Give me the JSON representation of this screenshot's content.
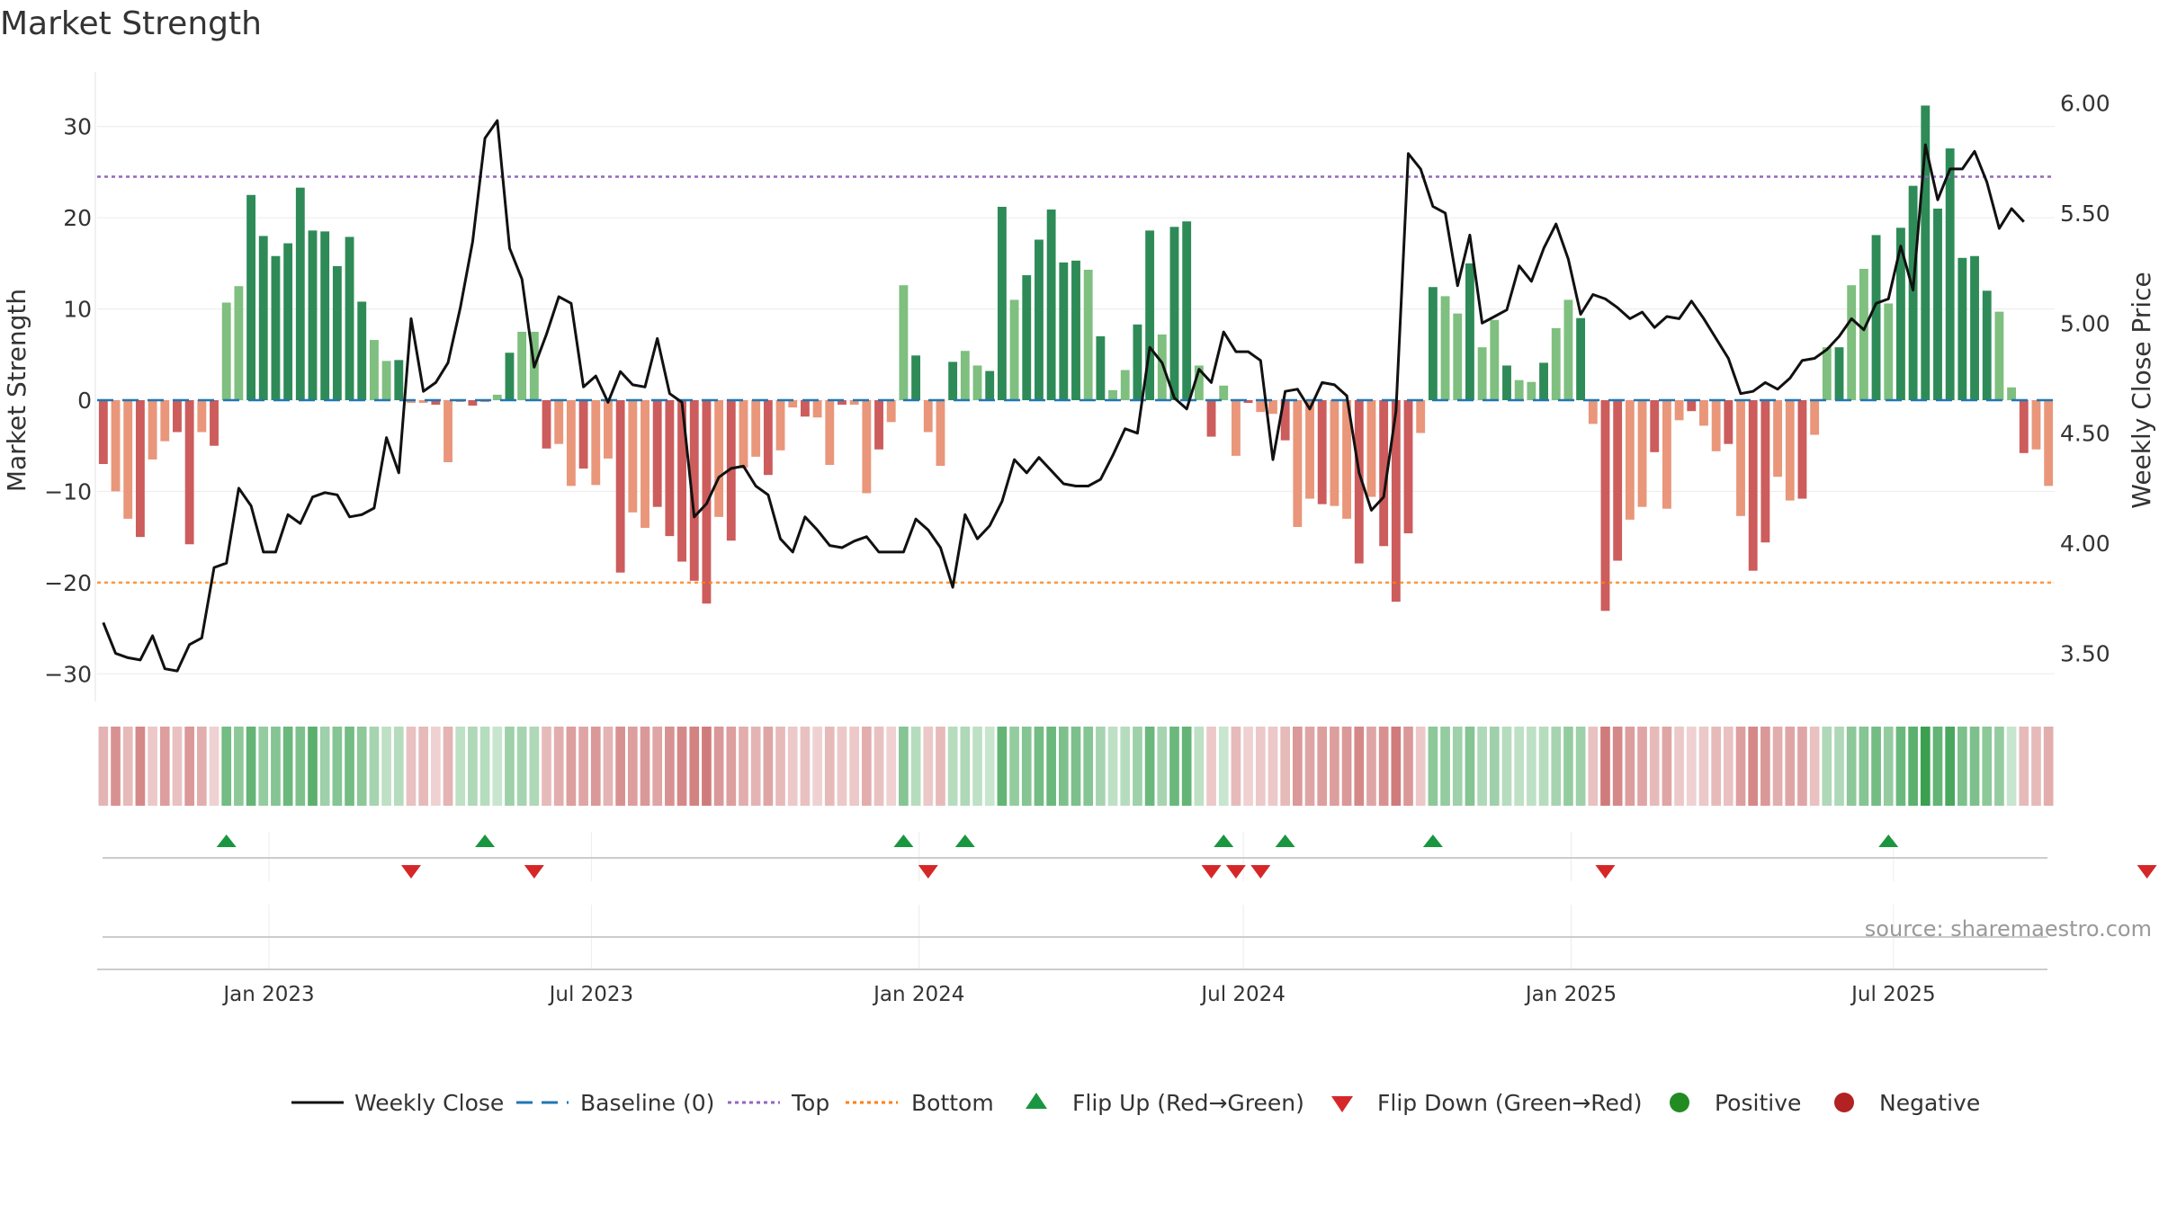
{
  "chart_data": {
    "type": "bar",
    "title": "Market Strength",
    "ylabel": "Market Strength",
    "y2label": "Weekly Close Price",
    "ylim": [
      -35,
      35
    ],
    "y2lim": [
      3.2,
      6.1
    ],
    "yticks": [
      -30,
      -20,
      -10,
      0,
      10,
      20,
      30
    ],
    "yticklabels": [
      "−30",
      "−20",
      "−10",
      "0",
      "10",
      "20",
      "30"
    ],
    "y2ticks": [
      3.5,
      4.0,
      4.5,
      5.0,
      5.5,
      6.0
    ],
    "y2ticklabels": [
      "3.50",
      "4.00",
      "4.50",
      "5.00",
      "5.50",
      "6.00"
    ],
    "x_start": "2022-09-30",
    "x_end": "2025-09-26",
    "xticks": [
      "2023-01-01",
      "2023-07-01",
      "2024-01-01",
      "2024-07-01",
      "2025-01-01",
      "2025-07-01"
    ],
    "xticklabels": [
      "Jan 2023",
      "Jul 2023",
      "Jan 2024",
      "Jul 2024",
      "Jan 2025",
      "Jul 2025"
    ],
    "top_level": 24.5,
    "bottom_level": -20,
    "baseline": 0,
    "strength_values": [
      -7,
      -10,
      -13,
      -15,
      -6.5,
      -4.5,
      -3.5,
      -15.8,
      -3.5,
      -5,
      10.7,
      12.5,
      22.5,
      18,
      15.8,
      17.2,
      23.3,
      18.6,
      18.5,
      14.7,
      17.9,
      10.8,
      6.6,
      4.3,
      4.4,
      -0.3,
      -0.3,
      -0.5,
      -6.8,
      -0.2,
      -0.6,
      -0.2,
      0.6,
      5.2,
      7.5,
      7.5,
      -5.3,
      -4.8,
      -9.4,
      -7.5,
      -9.3,
      -6.4,
      -18.9,
      -12.3,
      -14,
      -11.7,
      -14.9,
      -17.7,
      -19.8,
      -22.3,
      -12.8,
      -15.4,
      -7.4,
      -6.2,
      -8.2,
      -5.5,
      -0.8,
      -1.8,
      -1.9,
      -7.1,
      -0.5,
      -0.5,
      -10.2,
      -5.4,
      -2.4,
      12.6,
      4.9,
      -3.5,
      -7.2,
      4.2,
      5.4,
      3.8,
      3.2,
      21.2,
      11,
      13.7,
      17.6,
      20.9,
      15.1,
      15.3,
      14.3,
      7,
      1.1,
      3.3,
      8.3,
      18.6,
      7.2,
      19,
      19.6,
      3.8,
      -4,
      1.6,
      -6.1,
      -0.3,
      -1.3,
      -1.5,
      -4.4,
      -13.9,
      -10.8,
      -11.4,
      -11.6,
      -13,
      -17.9,
      -10.6,
      -16,
      -22.1,
      -14.6,
      -3.6,
      12.4,
      11.4,
      9.5,
      15,
      5.8,
      8.8,
      3.8,
      2.2,
      2,
      4.1,
      7.9,
      11,
      9,
      -2.6,
      -23.1,
      -17.6,
      -13.1,
      -11.7,
      -5.7,
      -11.9,
      -2.2,
      -1.2,
      -2.8,
      -5.6,
      -4.8,
      -12.7,
      -18.7,
      -15.6,
      -8.4,
      -11,
      -10.8,
      -3.8,
      5.8,
      5.8,
      12.6,
      14.4,
      18.1,
      10.6,
      18.9,
      23.5,
      32.3,
      21,
      27.6,
      15.6,
      15.8,
      12,
      9.7,
      1.4,
      -5.8,
      -5.4,
      -9.4
    ],
    "close_values": [
      3.64,
      3.5,
      3.48,
      3.47,
      3.58,
      3.43,
      3.42,
      3.54,
      3.57,
      3.89,
      3.91,
      4.25,
      4.17,
      3.96,
      3.96,
      4.13,
      4.09,
      4.21,
      4.23,
      4.22,
      4.12,
      4.13,
      4.16,
      4.48,
      4.32,
      5.02,
      4.69,
      4.73,
      4.82,
      5.07,
      5.37,
      5.84,
      5.92,
      5.34,
      5.2,
      4.8,
      4.95,
      5.12,
      5.09,
      4.71,
      4.76,
      4.64,
      4.78,
      4.72,
      4.71,
      4.93,
      4.68,
      4.64,
      4.12,
      4.18,
      4.3,
      4.34,
      4.35,
      4.26,
      4.22,
      4.02,
      3.96,
      4.12,
      4.06,
      3.99,
      3.98,
      4.01,
      4.03,
      3.96,
      3.96,
      3.96,
      4.11,
      4.06,
      3.98,
      3.8,
      4.13,
      4.02,
      4.08,
      4.19,
      4.38,
      4.32,
      4.39,
      4.33,
      4.27,
      4.26,
      4.26,
      4.29,
      4.4,
      4.52,
      4.5,
      4.89,
      4.82,
      4.66,
      4.61,
      4.79,
      4.73,
      4.96,
      4.87,
      4.87,
      4.83,
      4.38,
      4.69,
      4.7,
      4.61,
      4.73,
      4.72,
      4.67,
      4.32,
      4.15,
      4.21,
      4.6,
      5.77,
      5.7,
      5.53,
      5.5,
      5.17,
      5.4,
      5.0,
      5.03,
      5.06,
      5.26,
      5.19,
      5.34,
      5.45,
      5.29,
      5.04,
      5.13,
      5.11,
      5.07,
      5.02,
      5.05,
      4.98,
      5.03,
      5.02,
      5.1,
      5.02,
      4.93,
      4.84,
      4.68,
      4.69,
      4.73,
      4.7,
      4.75,
      4.83,
      4.84,
      4.88,
      4.94,
      5.02,
      4.97,
      5.09,
      5.11,
      5.35,
      5.15,
      5.81,
      5.56,
      5.7,
      5.7,
      5.78,
      5.64,
      5.43,
      5.52,
      5.46
    ],
    "band_values": [
      -12,
      -22,
      -10,
      -24,
      -6,
      -18,
      -8,
      -20,
      -14,
      -4,
      24,
      18,
      28,
      16,
      20,
      26,
      22,
      30,
      14,
      20,
      24,
      18,
      12,
      6,
      8,
      -8,
      -10,
      -4,
      -12,
      6,
      10,
      8,
      4,
      14,
      12,
      10,
      -10,
      -14,
      -18,
      -16,
      -20,
      -12,
      -22,
      -18,
      -20,
      -16,
      -22,
      -24,
      -26,
      -28,
      -20,
      -18,
      -14,
      -12,
      -16,
      -10,
      -6,
      -8,
      -4,
      -10,
      -6,
      -6,
      -14,
      -8,
      -4,
      20,
      8,
      -6,
      -10,
      8,
      10,
      6,
      4,
      28,
      16,
      20,
      24,
      26,
      22,
      22,
      20,
      12,
      6,
      8,
      14,
      26,
      12,
      26,
      28,
      6,
      -6,
      4,
      -10,
      -4,
      -6,
      -6,
      -10,
      -20,
      -16,
      -18,
      -18,
      -20,
      -24,
      -16,
      -22,
      -28,
      -20,
      -6,
      18,
      16,
      14,
      20,
      10,
      14,
      8,
      6,
      6,
      8,
      12,
      16,
      14,
      -8,
      -28,
      -24,
      -18,
      -16,
      -10,
      -16,
      -6,
      -4,
      -6,
      -10,
      -8,
      -18,
      -24,
      -20,
      -14,
      -16,
      -16,
      -8,
      10,
      10,
      18,
      20,
      24,
      16,
      26,
      30,
      38,
      28,
      34,
      22,
      22,
      18,
      16,
      4,
      -10,
      -10,
      -14
    ],
    "flip_up_weeks": [
      10,
      31,
      65,
      70,
      91,
      96,
      108,
      145
    ],
    "flip_down_weeks": [
      25,
      35,
      67,
      90,
      92,
      94,
      122,
      166
    ],
    "series": [
      {
        "name": "Weekly Close"
      },
      {
        "name": "Baseline (0)"
      },
      {
        "name": "Top"
      },
      {
        "name": "Bottom"
      },
      {
        "name": "Flip Up (Red→Green)"
      },
      {
        "name": "Flip Down (Green→Red)"
      },
      {
        "name": "Positive"
      },
      {
        "name": "Negative"
      }
    ],
    "annotation": "source: sharemaestro.com",
    "legend_position": "bottom",
    "grid": true
  },
  "colors": {
    "positive_strong": "#2e8b57",
    "positive_light": "#7fbf7f",
    "negative_strong": "#cd5c5c",
    "negative_light": "#e9967a",
    "close_line": "#111111",
    "baseline": "#1f77b4",
    "top_line": "#9467bd",
    "bottom_line": "#ff7f0e",
    "flip_up": "#1a9641",
    "flip_down": "#d62728",
    "legend_positive": "#228b22",
    "legend_negative": "#b22222"
  }
}
